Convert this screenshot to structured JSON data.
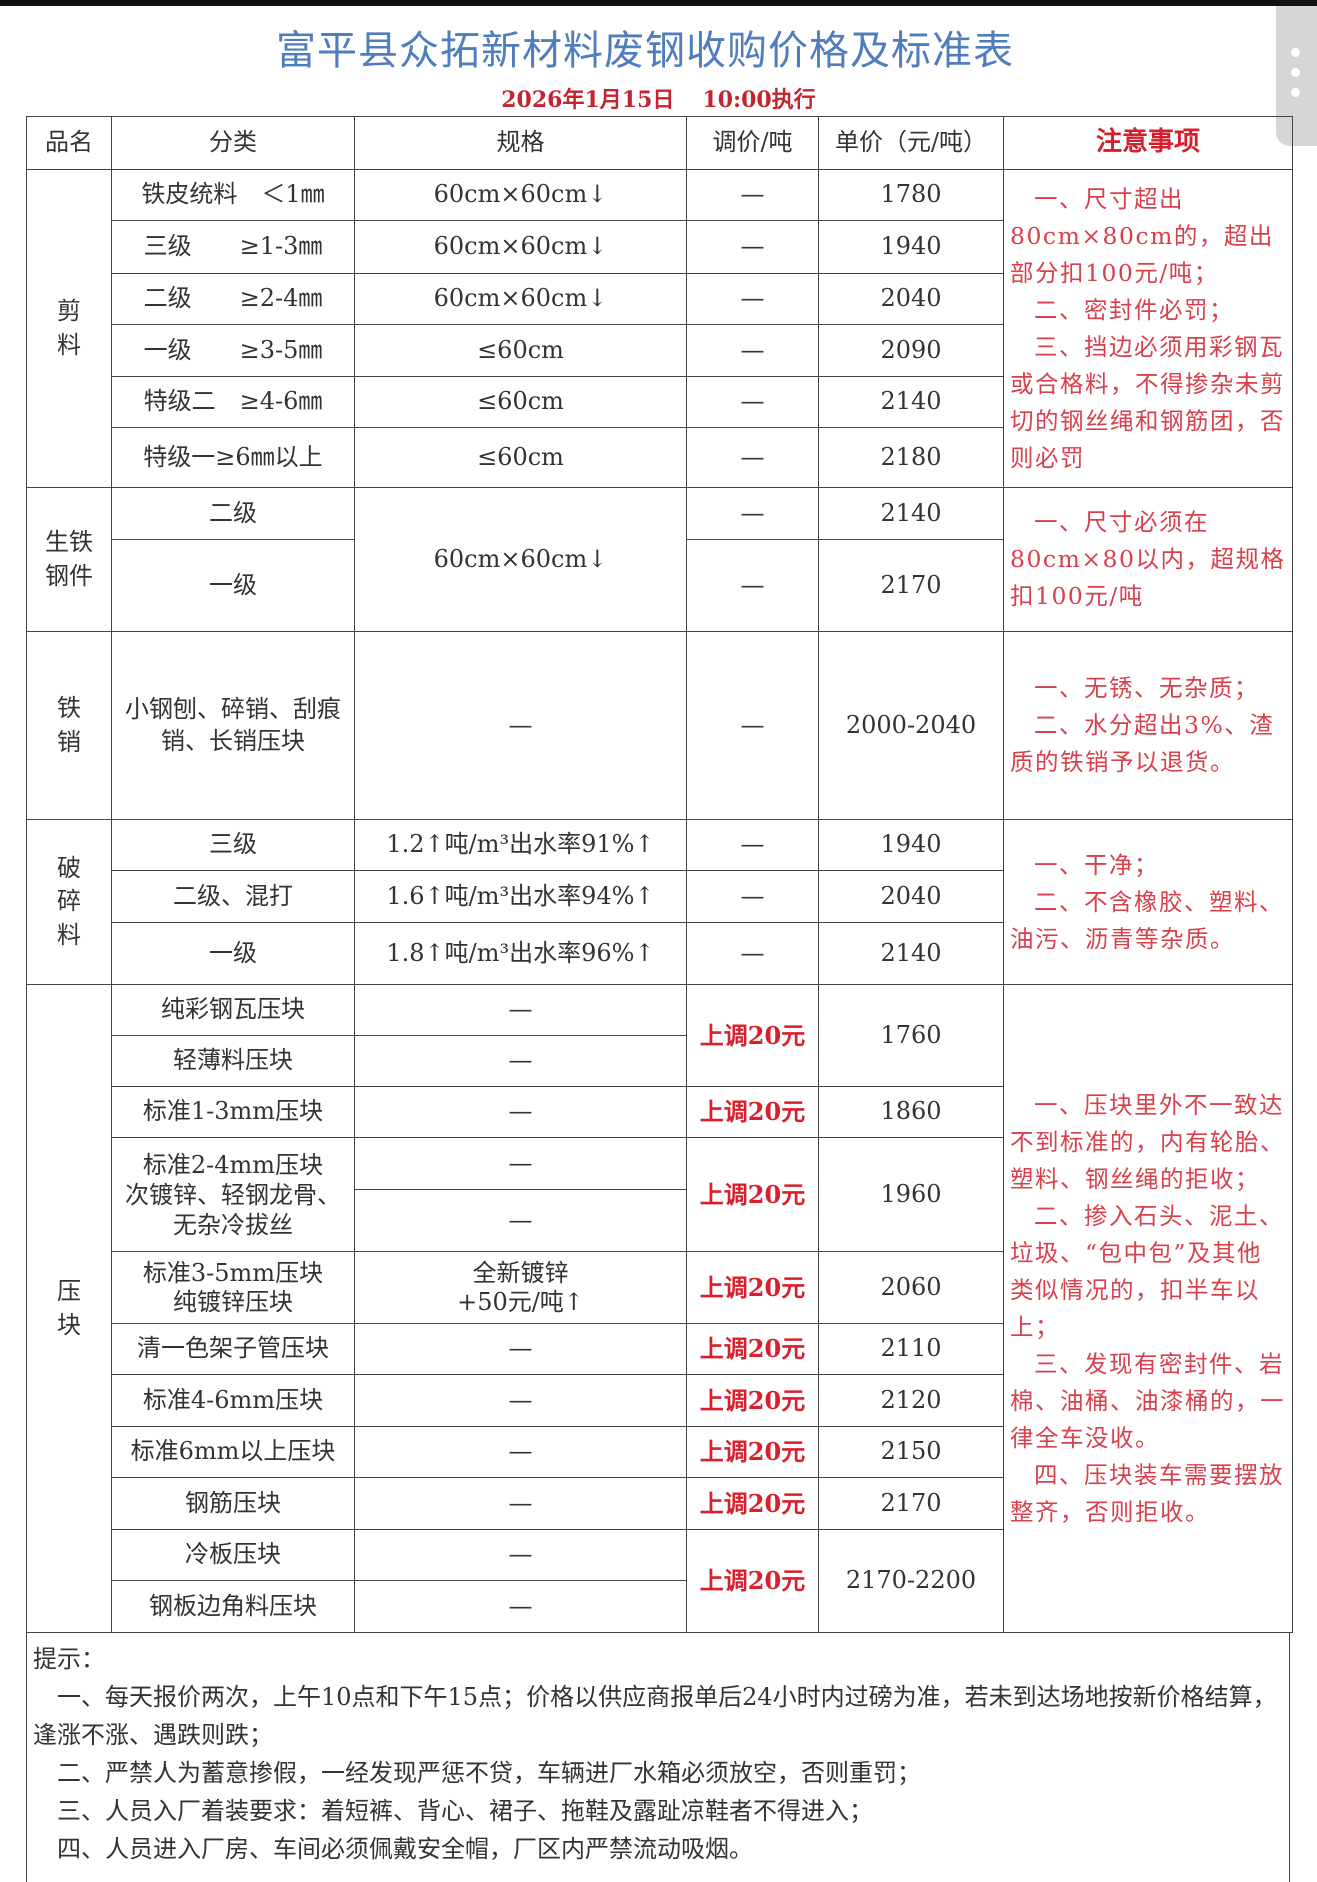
{
  "title": "富平县众拓新材料废钢收购价格及标准表",
  "effective": {
    "date": "2026年1月15日",
    "time": "10:00执行"
  },
  "headers": {
    "name": "品名",
    "category": "分类",
    "spec": "规格",
    "adjust": "调价/吨",
    "price": "单价（元/吨）",
    "notes": "注意事项"
  },
  "dash": "—",
  "shear": {
    "name": "剪料",
    "rows": [
      {
        "category": "铁皮统料　＜1㎜",
        "spec": "60cm×60cm↓",
        "adjust": "—",
        "price": "1780"
      },
      {
        "category": "三级　　≥1-3㎜",
        "spec": "60cm×60cm↓",
        "adjust": "—",
        "price": "1940"
      },
      {
        "category": "二级　　≥2-4㎜",
        "spec": "60cm×60cm↓",
        "adjust": "—",
        "price": "2040"
      },
      {
        "category": "一级　　≥3-5㎜",
        "spec": "≤60cm",
        "adjust": "—",
        "price": "2090"
      },
      {
        "category": "特级二　≥4-6㎜",
        "spec": "≤60cm",
        "adjust": "—",
        "price": "2140"
      },
      {
        "category": "特级一≥6㎜以上",
        "spec": "≤60cm",
        "adjust": "—",
        "price": "2180"
      }
    ],
    "notes": [
      "一、尺寸超出80cm×80cm的，超出部分扣100元/吨；",
      "二、密封件必罚；",
      "三、挡边必须用彩钢瓦或合格料，不得掺杂未剪切的钢丝绳和钢筋团，否则必罚"
    ]
  },
  "pig_iron": {
    "name": "生铁钢件",
    "spec": "60cm×60cm↓",
    "rows": [
      {
        "category": "二级",
        "adjust": "—",
        "price": "2140"
      },
      {
        "category": "一级",
        "adjust": "—",
        "price": "2170"
      }
    ],
    "notes": [
      "一、尺寸必须在80cm×80以内，超规格扣100元/吨"
    ]
  },
  "iron_chips": {
    "name": "铁销",
    "category": "小钢刨、碎销、刮痕销、长销压块",
    "spec": "—",
    "adjust": "—",
    "price": "2000-2040",
    "notes": [
      "一、无锈、无杂质；",
      "二、水分超出3%、渣质的铁销予以退货。"
    ]
  },
  "crushed": {
    "name": "破碎料",
    "rows": [
      {
        "category": "三级",
        "spec": "1.2↑吨/m³出水率91%↑",
        "adjust": "—",
        "price": "1940"
      },
      {
        "category": "二级、混打",
        "spec": "1.6↑吨/m³出水率94%↑",
        "adjust": "—",
        "price": "2040"
      },
      {
        "category": "一级",
        "spec": "1.8↑吨/m³出水率96%↑",
        "adjust": "—",
        "price": "2140"
      }
    ],
    "notes": [
      "一、干净；",
      "二、不含橡胶、塑料、油污、沥青等杂质。"
    ]
  },
  "bales": {
    "name": "压块",
    "adjust_label": "上调20元",
    "categories": [
      "纯彩钢瓦压块",
      "轻薄料压块",
      "标准1-3mm压块",
      "标准2-4mm压块",
      "次镀锌、轻钢龙骨、无杂冷拔丝",
      "标准3-5mm压块",
      "纯镀锌压块",
      "清一色架子管压块",
      "标准4-6mm压块",
      "标准6mm以上压块",
      "钢筋压块",
      "冷板压块",
      "钢板边角料压块"
    ],
    "galv_spec": [
      "全新镀锌",
      "+50元/吨↑"
    ],
    "prices": [
      "1760",
      "1860",
      "1960",
      "2060",
      "2110",
      "2120",
      "2150",
      "2170",
      "2170-2200"
    ],
    "notes": [
      "一、压块里外不一致达不到标准的，内有轮胎、塑料、钢丝绳的拒收；",
      "二、掺入石头、泥土、垃圾、“包中包”及其他类似情况的，扣半车以上；",
      "三、发现有密封件、岩棉、油桶、油漆桶的，一律全车没收。",
      "四、压块装车需要摆放整齐，否则拒收。"
    ]
  },
  "tips": {
    "label": "提示：",
    "items": [
      "一、每天报价两次，上午10点和下午15点；价格以供应商报单后24小时内过磅为准，若未到达场地按新价格结算，逢涨不涨、遇跌则跌；",
      "二、严禁人为蓄意掺假，一经发现严惩不贷，车辆进厂水箱必须放空，否则重罚；",
      "三、人员入厂着装要求：着短裤、背心、裙子、拖鞋及露趾凉鞋者不得进入；",
      "四、人员进入厂房、车间必须佩戴安全帽，厂区内严禁流动吸烟。"
    ]
  },
  "colors": {
    "title": "#4f7dbd",
    "accent_red": "#d4202c",
    "notes_red": "#d8404c",
    "text": "#333333"
  },
  "icons": {
    "side_handle": "more-vertical-icon"
  }
}
